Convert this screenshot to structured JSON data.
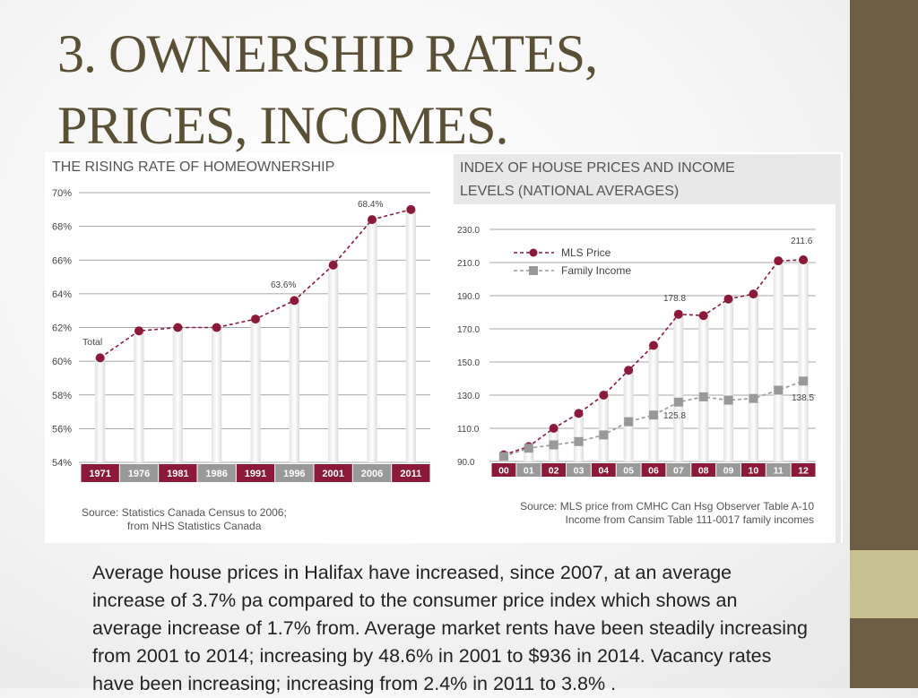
{
  "slide": {
    "title_line1": "3. OWNERSHIP RATES,",
    "title_line2": "PRICES, INCOMES.",
    "paragraph": "Average house prices in Halifax have increased, since 2007, at an average increase of 3.7% pa compared to the consumer price index which shows an average increase of 1.7% from. Average market rents have been steadily increasing from 2001 to 2014; increasing by 48.6% in 2001 to $936 in 2014. Vacancy rates have been increasing; increasing from 2.4% in 2011 to 3.8% ."
  },
  "colors": {
    "accent": "#8b1a3a",
    "gray": "#999999",
    "sidebar": "#6b5e45",
    "sidebar_accent": "#c7c193",
    "title": "#5a5035"
  },
  "chart_data": [
    {
      "type": "line",
      "title": "THE RISING RATE OF HOMEOWNERSHIP",
      "categories": [
        "1971",
        "1976",
        "1981",
        "1986",
        "1991",
        "1996",
        "2001",
        "2006",
        "2011"
      ],
      "series": [
        {
          "name": "Total",
          "values": [
            60.2,
            61.8,
            62.0,
            62.0,
            62.5,
            63.6,
            65.7,
            68.4,
            69.0
          ]
        }
      ],
      "ylim": [
        54,
        70
      ],
      "yticks": [
        "70%",
        "68%",
        "66%",
        "64%",
        "62%",
        "60%",
        "58%",
        "56%",
        "54%"
      ],
      "annotations": [
        "68.4%",
        "63.6%"
      ],
      "source_line1": "Source: Statistics Canada Census to 2006;",
      "source_line2": "from NHS Statistics Canada"
    },
    {
      "type": "line",
      "title_line1": "INDEX OF HOUSE PRICES AND INCOME",
      "title_line2": "LEVELS (NATIONAL AVERAGES)",
      "categories": [
        "00",
        "01",
        "02",
        "03",
        "04",
        "05",
        "06",
        "07",
        "08",
        "09",
        "10",
        "11",
        "12"
      ],
      "series": [
        {
          "name": "MLS Price",
          "values": [
            94,
            99,
            110,
            119,
            130,
            145,
            160,
            178.8,
            178,
            188,
            191,
            211,
            211.6
          ]
        },
        {
          "name": "Family Income",
          "values": [
            93,
            98,
            100,
            102,
            106,
            114,
            118,
            125.8,
            129,
            127,
            128,
            133,
            138.5
          ]
        }
      ],
      "ylim": [
        90,
        230
      ],
      "yticks": [
        "230.0",
        "210.0",
        "190.0",
        "170.0",
        "150.0",
        "130.0",
        "110.0",
        "90.0"
      ],
      "annotations": [
        "211.6",
        "178.8",
        "125.8",
        "138.5"
      ],
      "source_line1": "Source: MLS price from CMHC Can Hsg Observer Table A-10",
      "source_line2": "Income from Cansim Table 111-0017 family incomes"
    }
  ]
}
